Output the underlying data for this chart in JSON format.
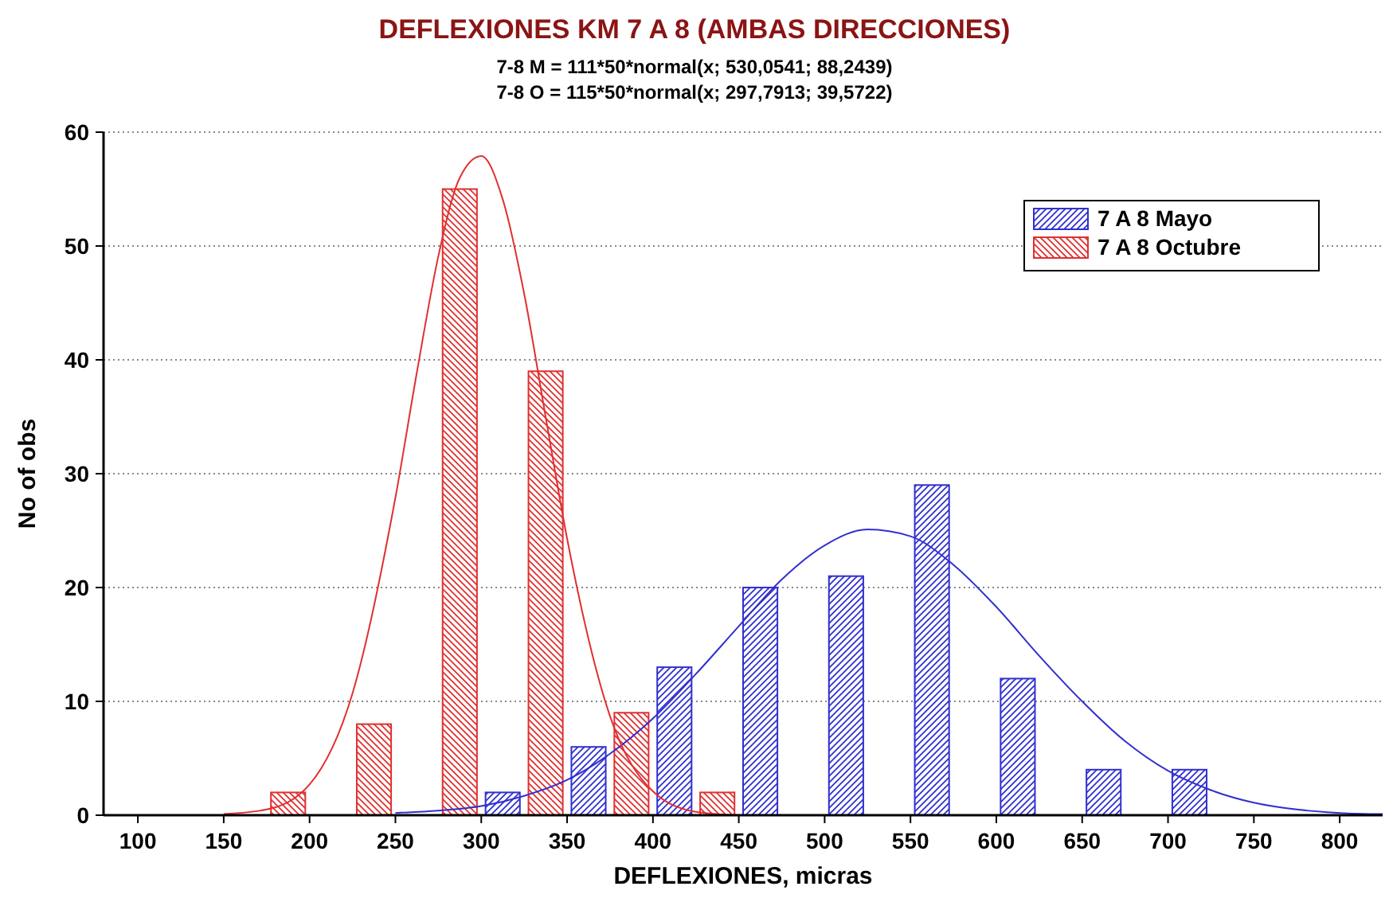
{
  "chart_data": {
    "type": "histogram",
    "title": "DEFLEXIONES KM 7 A 8 (AMBAS DIRECCIONES)",
    "subtitle": "7-8 M = 111*50*normal(x; 530,0541; 88,2439)\n7-8 O = 115*50*normal(x; 297,7913; 39,5722)",
    "xlabel": "DEFLEXIONES, micras",
    "ylabel": "No of obs",
    "bins": [
      175,
      225,
      275,
      325,
      375,
      425,
      475,
      525,
      575,
      625,
      675,
      725,
      775
    ],
    "series": [
      {
        "name": "7 A 8 Mayo",
        "color": "#3030d0",
        "values": [
          0,
          0,
          2,
          6,
          13,
          20,
          21,
          29,
          12,
          4,
          4,
          0
        ]
      },
      {
        "name": "7 A 8 Octubre",
        "color": "#e03030",
        "values": [
          2,
          8,
          55,
          39,
          9,
          2,
          0,
          0,
          0,
          0,
          0,
          0
        ]
      },
      {
        "type": "line",
        "color": "#3030d0",
        "x": [
          250,
          275,
          300,
          325,
          350,
          375,
          400,
          425,
          450,
          475,
          500,
          525,
          550,
          575,
          600,
          625,
          650,
          675,
          700,
          725,
          750,
          775,
          800,
          825
        ],
        "values": [
          0.2,
          0.4,
          0.8,
          1.7,
          3.1,
          5.4,
          8.5,
          12.4,
          16.6,
          20.7,
          23.7,
          25.1,
          24.5,
          22.0,
          18.3,
          14.0,
          10.0,
          6.5,
          3.9,
          2.2,
          1.1,
          0.5,
          0.2,
          0.1
        ]
      },
      {
        "type": "line",
        "color": "#e03030",
        "x": [
          150,
          175,
          200,
          225,
          250,
          262.5,
          275,
          287.5,
          300,
          312.5,
          325,
          337.5,
          350,
          375,
          400,
          425,
          450
        ],
        "values": [
          0.1,
          0.5,
          2.7,
          10.7,
          27.9,
          38.9,
          49.1,
          56.0,
          57.9,
          54.1,
          45.8,
          35.0,
          24.3,
          8.7,
          2.1,
          0.3,
          0.0
        ]
      }
    ],
    "xlim": [
      80,
      825
    ],
    "xticks": [
      100,
      150,
      200,
      250,
      300,
      350,
      400,
      450,
      500,
      550,
      600,
      650,
      700,
      750,
      800
    ],
    "ylim": [
      0,
      60
    ],
    "yticks": [
      0,
      10,
      20,
      30,
      40,
      50,
      60
    ],
    "grid": "y",
    "legend": "top right"
  }
}
